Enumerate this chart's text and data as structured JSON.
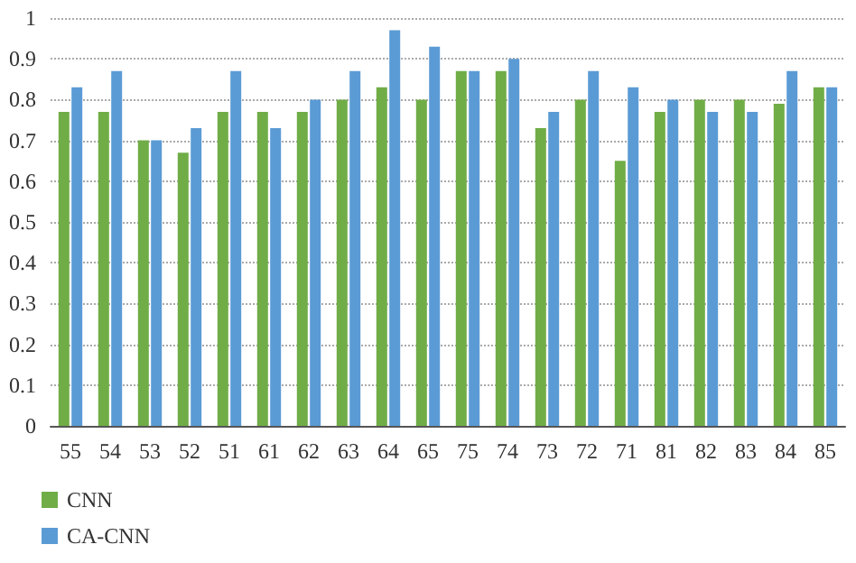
{
  "chart_data": {
    "type": "bar",
    "categories": [
      "55",
      "54",
      "53",
      "52",
      "51",
      "61",
      "62",
      "63",
      "64",
      "65",
      "75",
      "74",
      "73",
      "72",
      "71",
      "81",
      "82",
      "83",
      "84",
      "85"
    ],
    "series": [
      {
        "name": "CNN",
        "color": "#70ad47",
        "values": [
          0.77,
          0.77,
          0.7,
          0.67,
          0.77,
          0.77,
          0.77,
          0.8,
          0.83,
          0.8,
          0.87,
          0.87,
          0.73,
          0.8,
          0.65,
          0.77,
          0.8,
          0.8,
          0.79,
          0.83
        ]
      },
      {
        "name": "CA-CNN",
        "color": "#5b9bd5",
        "values": [
          0.83,
          0.87,
          0.7,
          0.73,
          0.87,
          0.73,
          0.8,
          0.87,
          0.97,
          0.93,
          0.87,
          0.9,
          0.77,
          0.87,
          0.83,
          0.8,
          0.77,
          0.77,
          0.87,
          0.83
        ]
      }
    ],
    "ylim": [
      0,
      1
    ],
    "yticks": [
      0,
      0.1,
      0.2,
      0.3,
      0.4,
      0.5,
      0.6,
      0.7,
      0.8,
      0.9,
      1
    ],
    "grid": "y",
    "legend": "bottom left"
  }
}
